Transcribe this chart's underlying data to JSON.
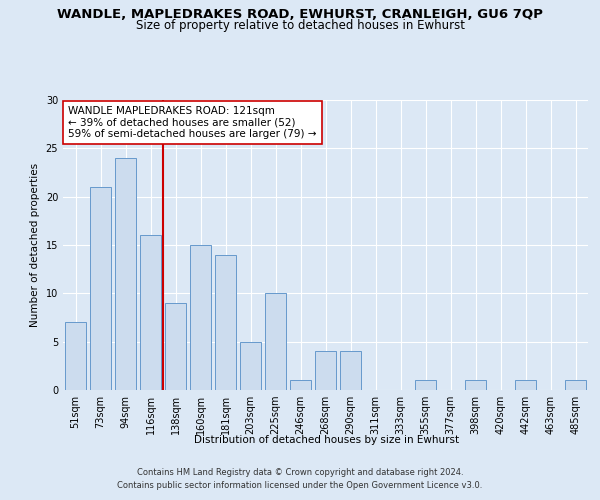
{
  "title": "WANDLE, MAPLEDRAKES ROAD, EWHURST, CRANLEIGH, GU6 7QP",
  "subtitle": "Size of property relative to detached houses in Ewhurst",
  "xlabel": "Distribution of detached houses by size in Ewhurst",
  "ylabel": "Number of detached properties",
  "categories": [
    "51sqm",
    "73sqm",
    "94sqm",
    "116sqm",
    "138sqm",
    "160sqm",
    "181sqm",
    "203sqm",
    "225sqm",
    "246sqm",
    "268sqm",
    "290sqm",
    "311sqm",
    "333sqm",
    "355sqm",
    "377sqm",
    "398sqm",
    "420sqm",
    "442sqm",
    "463sqm",
    "485sqm"
  ],
  "values": [
    7,
    21,
    24,
    16,
    9,
    15,
    14,
    5,
    10,
    1,
    4,
    4,
    0,
    0,
    1,
    0,
    1,
    0,
    1,
    0,
    1
  ],
  "bar_color": "#ccdcee",
  "bar_edge_color": "#6699cc",
  "vline_x": 3.5,
  "vline_color": "#cc0000",
  "annotation_text": "WANDLE MAPLEDRAKES ROAD: 121sqm\n← 39% of detached houses are smaller (52)\n59% of semi-detached houses are larger (79) →",
  "annotation_box_color": "#ffffff",
  "annotation_box_edge": "#cc0000",
  "ylim": [
    0,
    30
  ],
  "yticks": [
    0,
    5,
    10,
    15,
    20,
    25,
    30
  ],
  "footer_line1": "Contains HM Land Registry data © Crown copyright and database right 2024.",
  "footer_line2": "Contains public sector information licensed under the Open Government Licence v3.0.",
  "background_color": "#dce8f5",
  "plot_bg_color": "#dce8f5",
  "title_fontsize": 9.5,
  "subtitle_fontsize": 8.5,
  "label_fontsize": 7.5,
  "tick_fontsize": 7,
  "footer_fontsize": 6,
  "annot_fontsize": 7.5
}
